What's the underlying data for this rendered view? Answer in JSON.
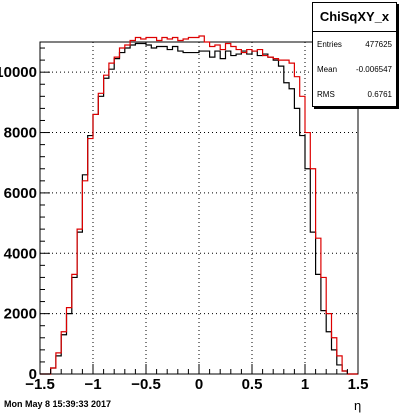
{
  "stats": {
    "title": "ChiSqXY_x",
    "rows": [
      {
        "label": "Entries",
        "value": "477625"
      },
      {
        "label": "Mean",
        "value": "-0.006547"
      },
      {
        "label": "RMS",
        "value": "0.6761"
      }
    ]
  },
  "timestamp": "Mon May  8 15:39:33 2017",
  "chart_data": {
    "type": "histogram",
    "title": "ChiSqXY_x",
    "xlabel": "η",
    "ylabel": "",
    "xlim": [
      -1.5,
      1.5
    ],
    "ylim": [
      0,
      11000
    ],
    "bin_width": 0.05,
    "xticks": [
      -1.5,
      -1,
      -0.5,
      0,
      0.5,
      1,
      1.5
    ],
    "xtick_labels": [
      "−1.5",
      "−1",
      "−0.5",
      "0",
      "0.5",
      "1",
      "1.5"
    ],
    "yticks": [
      0,
      2000,
      4000,
      6000,
      8000,
      10000
    ],
    "ytick_labels": [
      "0",
      "2000",
      "4000",
      "6000",
      "8000",
      "10000"
    ],
    "grid": true,
    "series": [
      {
        "color": "#000000",
        "values": [
          0,
          0,
          200,
          600,
          1300,
          2000,
          3200,
          4700,
          6600,
          7900,
          8600,
          9200,
          9800,
          10100,
          10450,
          10650,
          10800,
          10900,
          10950,
          10950,
          10900,
          10800,
          10850,
          10850,
          10750,
          10850,
          10700,
          10650,
          10650,
          10650,
          10700,
          10700,
          10500,
          10700,
          10450,
          10700,
          10550,
          10600,
          10700,
          10600,
          10700,
          10550,
          10600,
          10500,
          10400,
          10200,
          9650,
          9450,
          8800,
          7900,
          6800,
          4700,
          3300,
          2100,
          1400,
          800,
          300,
          100,
          0,
          0
        ]
      },
      {
        "color": "#dd0000",
        "values": [
          0,
          0,
          200,
          700,
          1400,
          2200,
          3300,
          4800,
          6400,
          7800,
          8600,
          9300,
          9900,
          10300,
          10500,
          10800,
          10900,
          11050,
          11150,
          11100,
          11150,
          11150,
          11050,
          11150,
          11100,
          11150,
          11050,
          11100,
          11150,
          11150,
          11200,
          11000,
          10850,
          10900,
          10750,
          10950,
          10850,
          10750,
          10650,
          10750,
          10700,
          10750,
          10550,
          10500,
          10450,
          10400,
          10400,
          10300,
          9850,
          9200,
          8000,
          6800,
          4500,
          3200,
          2000,
          1200,
          600,
          100,
          0,
          0
        ]
      }
    ]
  }
}
